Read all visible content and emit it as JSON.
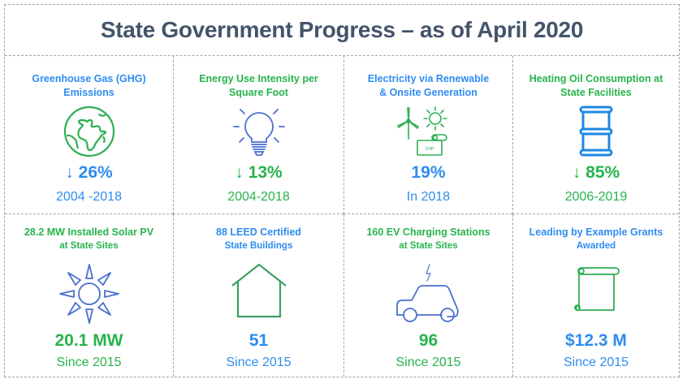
{
  "title": "State Government Progress – as of April 2020",
  "colors": {
    "title": "#44546a",
    "blue": "#2f8cf0",
    "green": "#27b34c",
    "icon_blue_outline": "#4a6fd0",
    "icon_green_outline": "#2fae55",
    "border": "#9aa3ad"
  },
  "tiles": [
    {
      "title_line1": "Greenhouse Gas (GHG)",
      "title_line2": "Emissions",
      "icon": "globe-icon",
      "value": "↓ 26%",
      "subtext": "2004 -2018",
      "color": "blue"
    },
    {
      "title_line1": "Energy Use Intensity per",
      "title_line2": "Square Foot",
      "icon": "lightbulb-icon",
      "value": "↓ 13%",
      "subtext": "2004-2018",
      "color": "green"
    },
    {
      "title_line1": "Electricity via Renewable",
      "title_line2": "& Onsite Generation",
      "icon": "wind-solar-chp-icon",
      "icon_label": "CHP",
      "value": "19%",
      "subtext": "In 2018",
      "color": "blue"
    },
    {
      "title_line1": "Heating Oil Consumption at",
      "title_line2": "State Facilities",
      "icon": "oil-barrel-icon",
      "value": "↓ 85%",
      "subtext": "2006-2019",
      "color": "green"
    },
    {
      "title_line1": "28.2 MW Installed Solar PV",
      "title_line2": "at State Sites",
      "icon": "sun-icon",
      "value": "20.1 MW",
      "subtext": "Since 2015",
      "color": "green"
    },
    {
      "title_line1": "88 LEED Certified",
      "title_line2": "State Buildings",
      "icon": "house-icon",
      "value": "51",
      "subtext": "Since 2015",
      "color": "blue"
    },
    {
      "title_line1": "160 EV Charging Stations",
      "title_line2": "at State Sites",
      "icon": "electric-car-icon",
      "value": "96",
      "subtext": "Since 2015",
      "color": "green"
    },
    {
      "title_line1": "Leading by Example Grants",
      "title_line2": "Awarded",
      "icon": "scroll-icon",
      "value": "$12.3 M",
      "subtext": "Since 2015",
      "color": "blue"
    }
  ]
}
